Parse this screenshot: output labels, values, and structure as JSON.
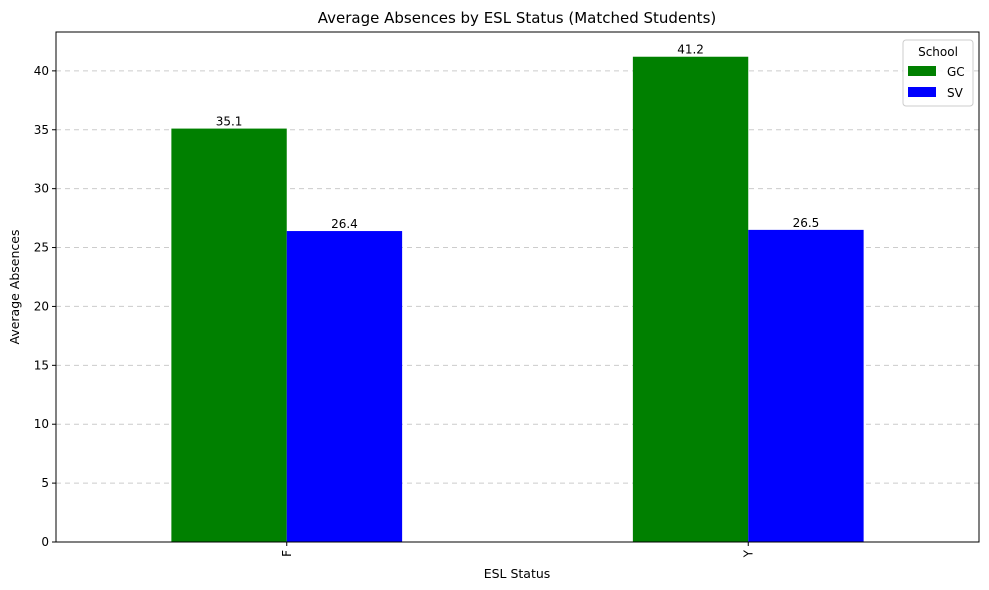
{
  "chart_data": {
    "type": "bar",
    "title": "Average Absences by ESL Status (Matched Students)",
    "xlabel": "ESL Status",
    "ylabel": "Average Absences",
    "categories": [
      "F",
      "Y"
    ],
    "series": [
      {
        "name": "GC",
        "values": [
          35.1,
          41.2
        ],
        "color": "#008000"
      },
      {
        "name": "SV",
        "values": [
          26.4,
          26.5
        ],
        "color": "#0000ff"
      }
    ],
    "data_labels": [
      [
        "35.1",
        "41.2"
      ],
      [
        "26.4",
        "26.5"
      ]
    ],
    "ylim": [
      0,
      43.3
    ],
    "yticks": [
      0,
      5,
      10,
      15,
      20,
      25,
      30,
      35,
      40
    ],
    "grid": true,
    "legend": {
      "title": "School",
      "position": "top-right"
    }
  }
}
